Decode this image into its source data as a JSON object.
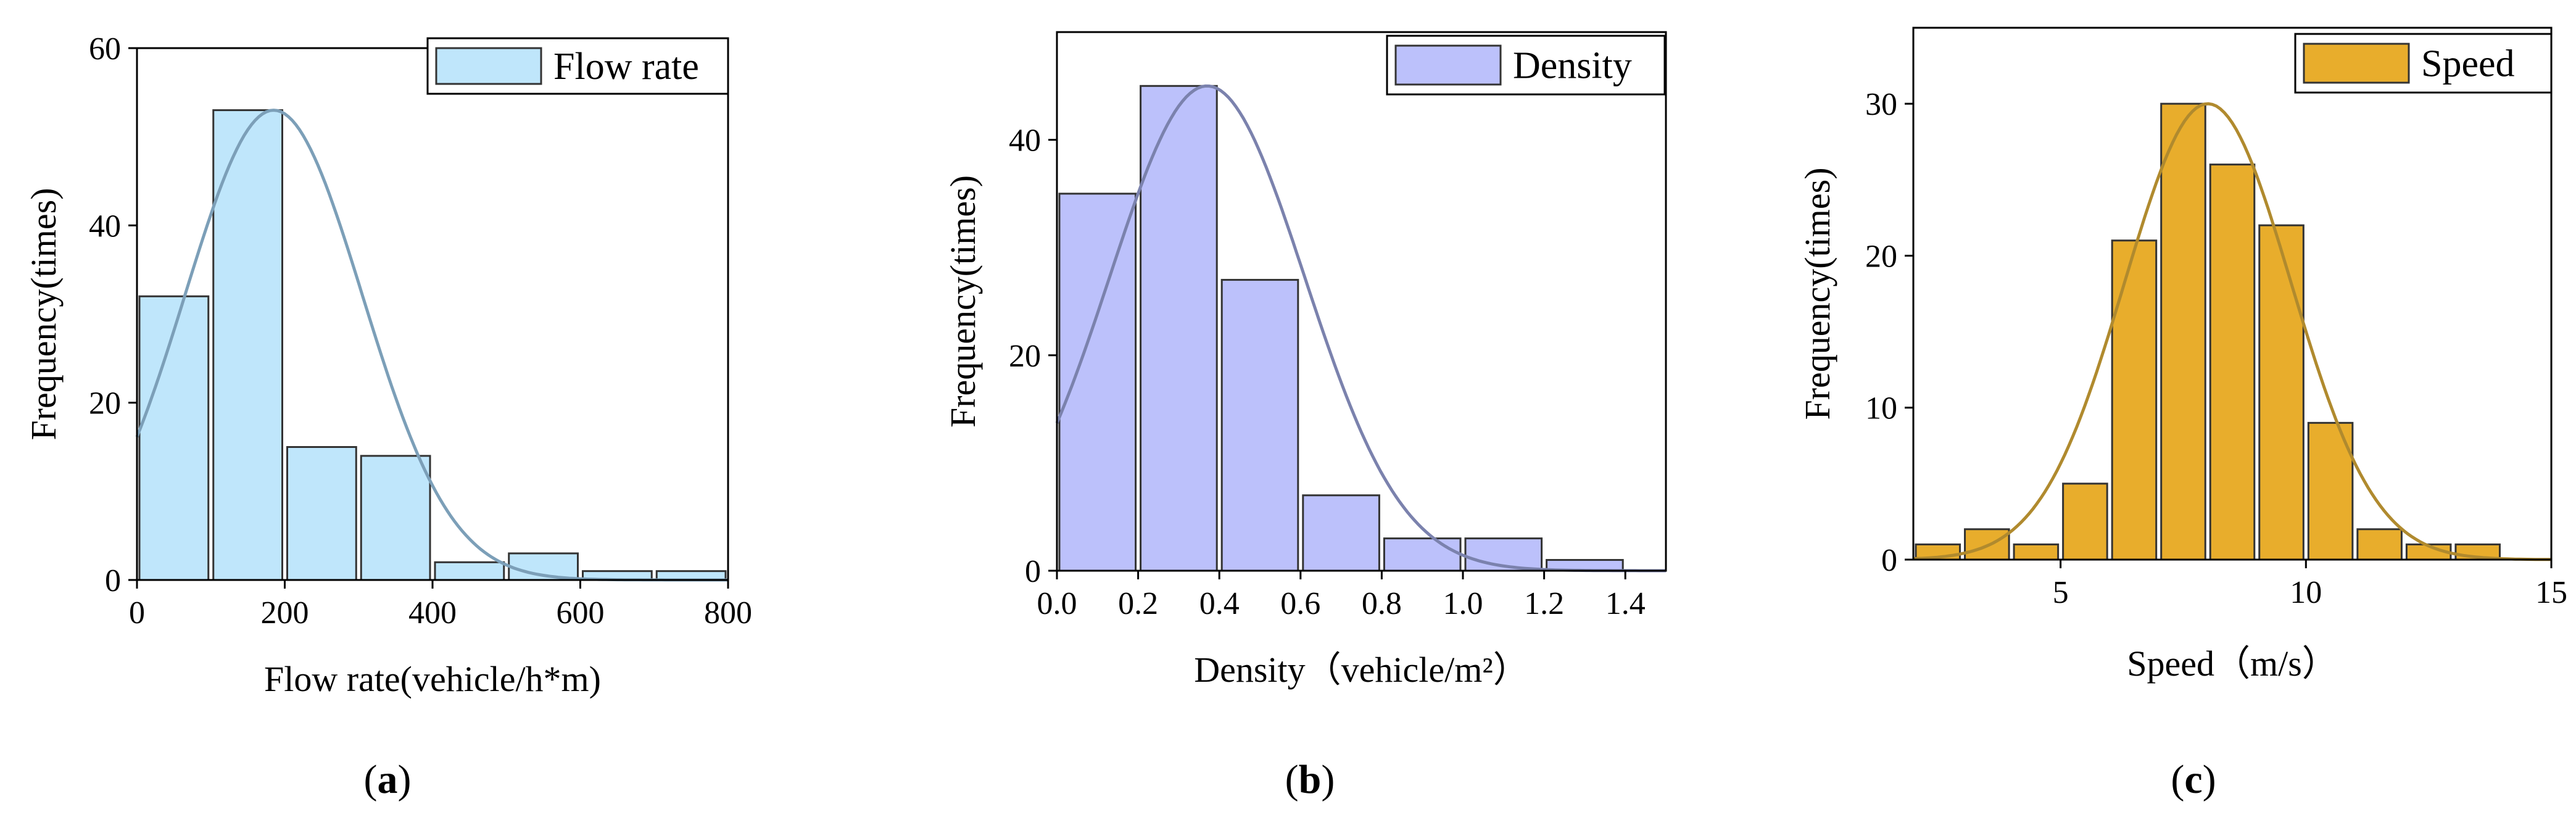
{
  "chart_data": [
    {
      "type": "bar",
      "panel_label": "a",
      "title": "",
      "xlabel": "Flow rate(vehicle/h*m)",
      "ylabel": "Frequency(times)",
      "legend": "Flow rate",
      "legend_position": "top-right",
      "xlim": [
        0,
        800
      ],
      "ylim": [
        0,
        60
      ],
      "xticks": [
        0,
        200,
        400,
        600,
        800
      ],
      "yticks": [
        0,
        20,
        40,
        60
      ],
      "bins": [
        [
          0,
          100
        ],
        [
          100,
          200
        ],
        [
          200,
          300
        ],
        [
          300,
          400
        ],
        [
          400,
          500
        ],
        [
          500,
          600
        ],
        [
          600,
          700
        ],
        [
          700,
          800
        ]
      ],
      "values": [
        32,
        53,
        15,
        14,
        2,
        3,
        1,
        1
      ],
      "fit_curve": {
        "kind": "normal",
        "peak_x": 185,
        "peak_y": 53,
        "sigma": 120
      },
      "bar_color": "#bfe6fb",
      "curve_color": "#7c9fb8"
    },
    {
      "type": "bar",
      "panel_label": "b",
      "title": "",
      "xlabel": "Density（vehicle/m²）",
      "ylabel": "Frequency(times)",
      "legend": "Density",
      "legend_position": "top-right",
      "xlim": [
        0,
        1.5
      ],
      "ylim": [
        0,
        50
      ],
      "xticks": [
        0.0,
        0.2,
        0.4,
        0.6,
        0.8,
        1.0,
        1.2,
        1.4
      ],
      "xtick_labels": [
        "0.0",
        "0.2",
        "0.4",
        "0.6",
        "0.8",
        "1.0",
        "1.2",
        "1.4"
      ],
      "yticks": [
        0,
        20,
        40
      ],
      "bins": [
        [
          0,
          0.2
        ],
        [
          0.2,
          0.4
        ],
        [
          0.4,
          0.6
        ],
        [
          0.6,
          0.8
        ],
        [
          0.8,
          1.0
        ],
        [
          1.0,
          1.2
        ],
        [
          1.2,
          1.4
        ]
      ],
      "values": [
        35,
        45,
        27,
        7,
        3,
        3,
        1
      ],
      "fit_curve": {
        "kind": "normal",
        "peak_x": 0.37,
        "peak_y": 45,
        "sigma": 0.24
      },
      "bar_color": "#bcc1fb",
      "curve_color": "#7b82ad"
    },
    {
      "type": "bar",
      "panel_label": "c",
      "title": "",
      "xlabel": "Speed（m/s）",
      "ylabel": "Frequency(times)",
      "legend": "Speed",
      "legend_position": "top-right",
      "xlim": [
        2,
        15
      ],
      "ylim": [
        0,
        35
      ],
      "xticks": [
        5,
        10,
        15
      ],
      "yticks": [
        0,
        10,
        20,
        30
      ],
      "bins": [
        [
          2,
          3
        ],
        [
          3,
          4
        ],
        [
          4,
          5
        ],
        [
          5,
          6
        ],
        [
          6,
          7
        ],
        [
          7,
          8
        ],
        [
          8,
          9
        ],
        [
          9,
          10
        ],
        [
          10,
          11
        ],
        [
          11,
          12
        ],
        [
          12,
          13
        ],
        [
          13,
          14
        ]
      ],
      "values": [
        1,
        2,
        1,
        5,
        21,
        30,
        26,
        22,
        9,
        2,
        1,
        1
      ],
      "fit_curve": {
        "kind": "normal",
        "peak_x": 8,
        "peak_y": 30,
        "sigma": 1.7
      },
      "bar_color": "#e8ad2c",
      "curve_color": "#b08a2e"
    }
  ]
}
